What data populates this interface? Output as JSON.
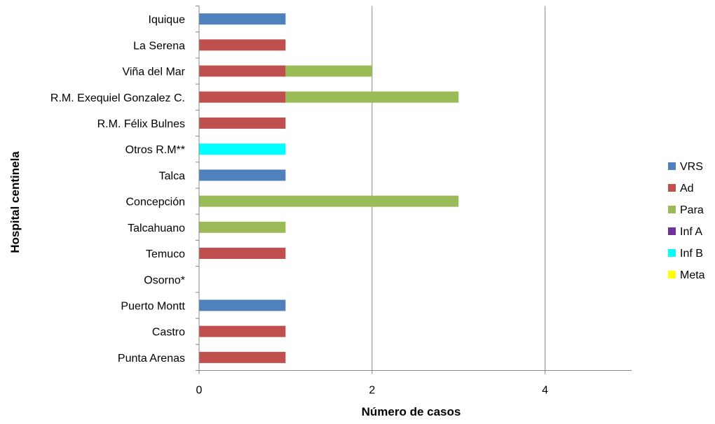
{
  "chart_data": {
    "type": "bar",
    "orientation": "horizontal",
    "stacked": true,
    "title": "",
    "xlabel": "Número de casos",
    "ylabel": "Hospital centinela",
    "xlim": [
      0,
      5
    ],
    "xticks": [
      0,
      2,
      4
    ],
    "grid": "vertical",
    "legend_position": "right",
    "categories": [
      "Iquique",
      "La Serena",
      "Viña del Mar",
      "R.M. Exequiel Gonzalez C.",
      "R.M. Félix Bulnes",
      "Otros R.M**",
      "Talca",
      "Concepción",
      "Talcahuano",
      "Temuco",
      "Osorno*",
      "Puerto Montt",
      "Castro",
      "Punta Arenas"
    ],
    "series": [
      {
        "name": "VRS",
        "color": "#4f81bd",
        "values": [
          1,
          0,
          0,
          0,
          0,
          0,
          1,
          0,
          0,
          0,
          0,
          1,
          0,
          0
        ]
      },
      {
        "name": "Ad",
        "color": "#c0504d",
        "values": [
          0,
          1,
          1,
          1,
          1,
          0,
          0,
          0,
          0,
          1,
          0,
          0,
          1,
          1
        ]
      },
      {
        "name": "Para",
        "color": "#9bbb59",
        "values": [
          0,
          0,
          1,
          2,
          0,
          0,
          0,
          3,
          1,
          0,
          0,
          0,
          0,
          0
        ]
      },
      {
        "name": "Inf A",
        "color": "#7030a0",
        "values": [
          0,
          0,
          0,
          0,
          0,
          0,
          0,
          0,
          0,
          0,
          0,
          0,
          0,
          0
        ]
      },
      {
        "name": "Inf B",
        "color": "#00ffff",
        "values": [
          0,
          0,
          0,
          0,
          0,
          1,
          0,
          0,
          0,
          0,
          0,
          0,
          0,
          0
        ]
      },
      {
        "name": "Meta",
        "color": "#ffff00",
        "values": [
          0,
          0,
          0,
          0,
          0,
          0,
          0,
          0,
          0,
          0,
          0,
          0,
          0,
          0
        ]
      }
    ]
  }
}
